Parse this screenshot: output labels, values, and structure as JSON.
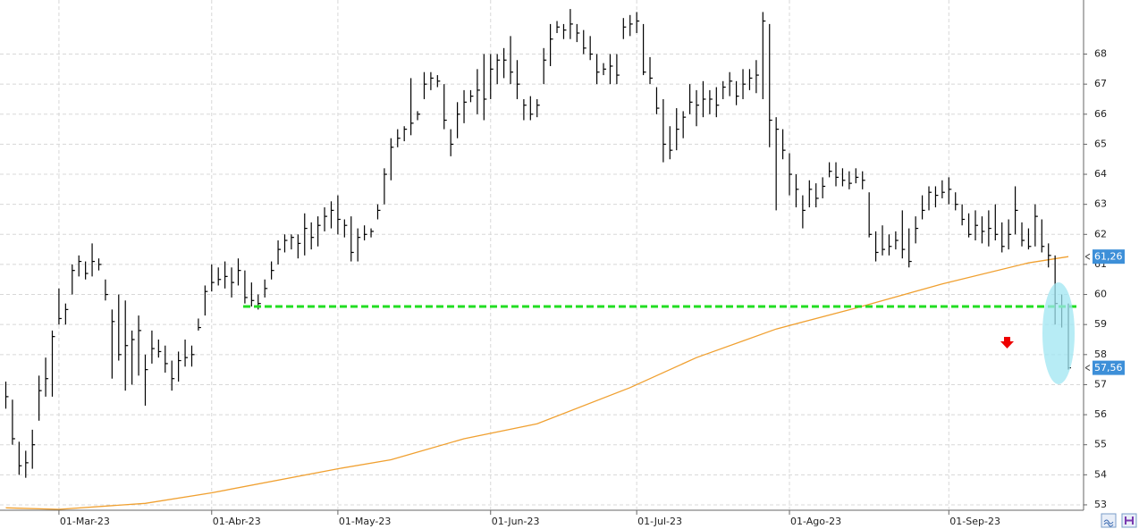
{
  "chart_data": {
    "type": "ohlc",
    "categories": [
      null,
      null,
      null,
      null,
      null,
      null,
      null,
      null,
      "01-Mar-23",
      null,
      null,
      null,
      null,
      null,
      null,
      null,
      null,
      null,
      null,
      null,
      null,
      null,
      null,
      null,
      null,
      null,
      null,
      null,
      null,
      null,
      null,
      "01-Abr-23",
      null,
      null,
      null,
      null,
      null,
      null,
      null,
      null,
      null,
      null,
      null,
      null,
      null,
      null,
      null,
      null,
      null,
      null,
      "01-May-23",
      null,
      null,
      null,
      null,
      null,
      null,
      null,
      null,
      null,
      null,
      null,
      null,
      null,
      null,
      null,
      null,
      null,
      null,
      null,
      null,
      null,
      null,
      "01-Jun-23",
      null,
      null,
      null,
      null,
      null,
      null,
      null,
      null,
      null,
      null,
      null,
      null,
      null,
      null,
      null,
      null,
      null,
      null,
      null,
      null,
      null,
      "01-Jul-23",
      null,
      null,
      null,
      null,
      null,
      null,
      null,
      null,
      null,
      null,
      null,
      null,
      null,
      null,
      null,
      null,
      null,
      null,
      null,
      null,
      null,
      null,
      "01-Ago-23",
      null,
      null,
      null,
      null,
      null,
      null,
      null,
      null,
      null,
      null,
      null,
      null,
      null,
      null,
      null,
      null,
      null,
      null,
      null,
      null,
      null,
      null,
      null,
      "01-Sep-23",
      null,
      null,
      null,
      null,
      null,
      null,
      null,
      null,
      null,
      null,
      null,
      null,
      null,
      null,
      null,
      null,
      null,
      null
    ],
    "high": [
      57.1,
      56.5,
      55.1,
      54.8,
      55.5,
      57.3,
      57.9,
      58.8,
      60.2,
      59.7,
      61,
      61.3,
      61.1,
      61.7,
      61.2,
      60.5,
      59.5,
      60,
      59.8,
      58.8,
      59.3,
      58,
      58.8,
      58.5,
      58.3,
      57.8,
      58.1,
      58.5,
      58.3,
      59.2,
      60.3,
      61,
      60.9,
      61.1,
      60.9,
      61.2,
      60.8,
      60.4,
      60,
      60.5,
      61.1,
      61.8,
      62,
      62,
      62,
      62.7,
      62.4,
      62.6,
      62.9,
      63.1,
      63.3,
      62.5,
      62.6,
      62.2,
      62.3,
      62.2,
      63,
      64.2,
      65.2,
      65.5,
      65.6,
      67.2,
      66.1,
      67.4,
      67.4,
      67.3,
      67,
      65.5,
      66.4,
      66.8,
      66.8,
      67.5,
      68,
      68,
      68,
      68.2,
      68.6,
      67.8,
      66.5,
      66.6,
      66.5,
      68.2,
      69,
      69.1,
      69,
      69.5,
      69,
      68.8,
      68.6,
      68,
      67.7,
      68,
      68,
      69.2,
      69.3,
      69.4,
      69,
      67.9,
      66.9,
      66.5,
      65.6,
      66.2,
      66.1,
      67,
      66.8,
      67.1,
      66.8,
      66.9,
      67.1,
      67.4,
      67.1,
      67.5,
      67.5,
      67.8,
      69.4,
      69,
      65.9,
      65.5,
      64.7,
      64,
      63.3,
      63.8,
      63.7,
      63.9,
      64.4,
      64.4,
      64.2,
      64.1,
      64.2,
      64.1,
      63.4,
      62.1,
      62.3,
      62,
      62.1,
      62.8,
      62.2,
      62.6,
      63.3,
      63.6,
      63.6,
      63.8,
      63.9,
      63.4,
      63,
      62.7,
      62.8,
      62.6,
      62.8,
      63,
      62.4,
      62.5,
      63.6,
      62.4,
      62.2,
      63,
      62.5,
      61.7,
      61.3,
      60,
      59.7
    ],
    "low": [
      56.2,
      55,
      54,
      53.9,
      54.2,
      55.8,
      56.6,
      56.6,
      59,
      59,
      60,
      60.6,
      60.5,
      60.6,
      60.8,
      59.8,
      57.2,
      57.8,
      56.8,
      57,
      57.3,
      56.3,
      57.7,
      57.9,
      57.4,
      56.8,
      57.1,
      57.6,
      57.6,
      58.8,
      59.3,
      60.1,
      60.3,
      60.2,
      59.9,
      60.3,
      59.7,
      59.6,
      59.5,
      59.9,
      60.5,
      61,
      61.4,
      61.5,
      61.2,
      61.3,
      61.5,
      61.6,
      62.1,
      62.2,
      62,
      61.9,
      61.1,
      61.1,
      61.8,
      61.9,
      62.5,
      63,
      63.8,
      64.9,
      65.1,
      65.3,
      65.8,
      66.5,
      66.8,
      66.9,
      65.5,
      64.6,
      65.2,
      65.7,
      66.4,
      66,
      65.8,
      66.5,
      67,
      67.2,
      67,
      66.5,
      65.8,
      65.8,
      65.9,
      67,
      67.6,
      68.7,
      68.5,
      68.5,
      68.4,
      68,
      67.8,
      67,
      67.3,
      67,
      67,
      68.5,
      68.6,
      68.7,
      67.3,
      67,
      66,
      64.4,
      64.5,
      64.8,
      65.2,
      66,
      65.6,
      65.9,
      66,
      65.9,
      66.5,
      66.6,
      66.3,
      66.5,
      66.8,
      66.7,
      66.5,
      64.9,
      62.8,
      64.5,
      63.3,
      62.9,
      62.2,
      62.9,
      62.9,
      63.2,
      63.9,
      63.6,
      63.6,
      63.5,
      63.7,
      63.5,
      61.9,
      61.1,
      61.3,
      61.3,
      61.5,
      61.2,
      60.9,
      61.7,
      62.5,
      62.8,
      62.9,
      63.2,
      63,
      62.8,
      62.3,
      61.9,
      61.8,
      61.7,
      61.6,
      61.8,
      61.4,
      61.5,
      62,
      61.6,
      61.5,
      61.6,
      61.4,
      60.9,
      59,
      58.9,
      57.5
    ],
    "close": [
      56.6,
      55.2,
      54.3,
      54.4,
      55,
      56.8,
      57.2,
      58.6,
      59.2,
      59.5,
      60.8,
      61.1,
      60.7,
      61.1,
      61,
      60,
      59.1,
      58,
      58.3,
      58.5,
      58.8,
      57.5,
      58.2,
      58.1,
      57.7,
      57.2,
      57.8,
      57.9,
      58,
      58.9,
      60.1,
      60.4,
      60.5,
      60.6,
      60.4,
      60.8,
      59.9,
      59.8,
      59.7,
      60.2,
      60.8,
      61.5,
      61.8,
      61.9,
      61.7,
      62.2,
      61.9,
      62.3,
      62.6,
      62.8,
      62.5,
      62.3,
      61.4,
      61.9,
      62,
      62.1,
      62.8,
      64,
      64.9,
      65.2,
      65.5,
      65.7,
      66,
      67,
      67.2,
      67.1,
      65.8,
      65,
      66,
      66.4,
      66.6,
      66.8,
      66.5,
      67.5,
      67.8,
      67.8,
      67.4,
      67,
      66.3,
      66,
      66.3,
      67.8,
      68.5,
      68.9,
      68.8,
      69,
      68.7,
      68.2,
      68,
      67.4,
      67.5,
      67.6,
      67.3,
      68.9,
      69,
      69.1,
      67.4,
      67.2,
      66.2,
      65,
      64.8,
      65.5,
      65.9,
      66.4,
      66.3,
      66.5,
      66.5,
      66.3,
      66.9,
      67.1,
      66.6,
      67,
      67.2,
      67.3,
      69.1,
      65.8,
      65.5,
      64.8,
      64,
      63.5,
      62.8,
      63.5,
      63.2,
      63.6,
      64.1,
      63.9,
      63.8,
      63.7,
      63.9,
      63.8,
      62,
      61.4,
      61.5,
      61.6,
      61.8,
      61.5,
      61.1,
      62.2,
      62.8,
      63.4,
      63.3,
      63.4,
      63.5,
      63,
      62.5,
      62,
      62.3,
      62.1,
      62.2,
      62,
      61.6,
      62,
      62.8,
      61.8,
      61.6,
      62.6,
      61.6,
      61.3,
      59.7,
      59.6,
      57.56
    ],
    "color": "#000000",
    "ma": {
      "color": "#f0a030",
      "x": [
        0,
        8,
        21,
        31,
        50,
        58,
        69,
        80,
        94,
        104,
        116,
        128,
        141,
        154,
        160
      ],
      "values": [
        52.9,
        52.85,
        53.05,
        53.4,
        54.2,
        54.5,
        55.2,
        55.7,
        56.9,
        57.9,
        58.85,
        59.55,
        60.35,
        61.05,
        61.26
      ]
    },
    "support": {
      "value": 59.6,
      "color": "#22dd22"
    },
    "price_tags": [
      {
        "value": 61.26,
        "label": "61,26"
      },
      {
        "value": 57.56,
        "label": "57,56"
      }
    ],
    "tag_color": "#3d8fd8",
    "ylim": [
      52.85,
      69.8
    ],
    "yticks": [
      53,
      54,
      55,
      56,
      57,
      58,
      59,
      60,
      61,
      62,
      63,
      64,
      65,
      66,
      67,
      68
    ],
    "grid": true
  }
}
